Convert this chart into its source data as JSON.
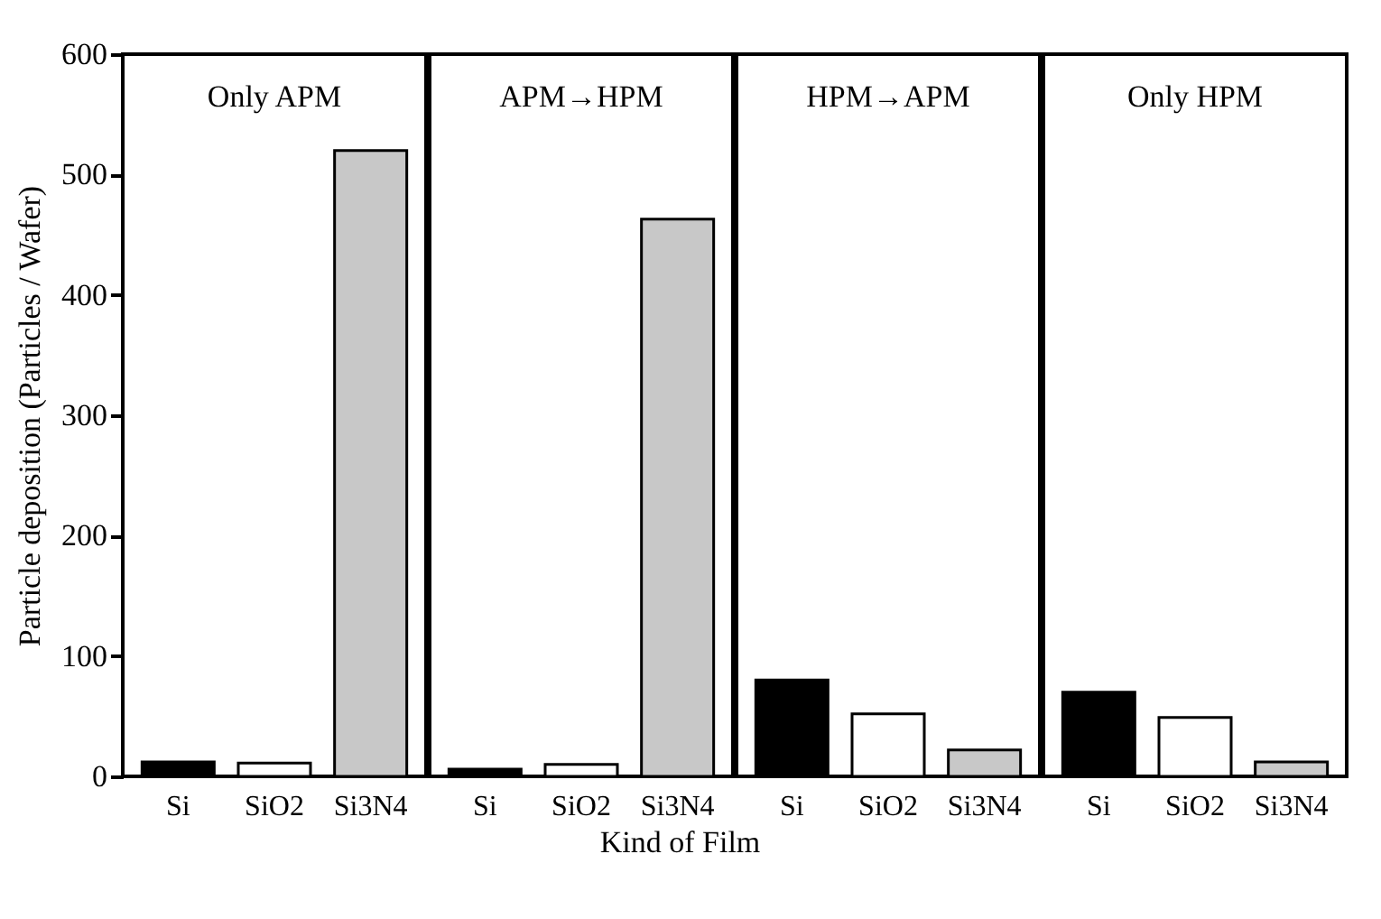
{
  "chart_data": [
    {
      "type": "bar",
      "title": "Only APM",
      "xlabel": "Kind of Film",
      "ylabel": "Particle deposition (Particles / Wafer)",
      "categories": [
        "Si",
        "SiO2",
        "Si3N4"
      ],
      "values": [
        12,
        11,
        520
      ],
      "colors": [
        "#000000",
        "#ffffff",
        "#c8c8c8"
      ],
      "ylim": [
        0,
        600
      ],
      "yticks": [
        0,
        100,
        200,
        300,
        400,
        500,
        600
      ]
    },
    {
      "type": "bar",
      "title": "APM→HPM",
      "categories": [
        "Si",
        "SiO2",
        "Si3N4"
      ],
      "values": [
        6,
        10,
        463
      ],
      "colors": [
        "#000000",
        "#ffffff",
        "#c8c8c8"
      ],
      "ylim": [
        0,
        600
      ],
      "yticks": [
        0,
        100,
        200,
        300,
        400,
        500,
        600
      ],
      "tick_labels": "x"
    },
    {
      "type": "bar",
      "title": "HPM→APM",
      "categories": [
        "Si",
        "SiO2",
        "Si3N4"
      ],
      "values": [
        80,
        52,
        22
      ],
      "colors": [
        "#000000",
        "#ffffff",
        "#c8c8c8"
      ],
      "ylim": [
        0,
        600
      ],
      "yticks": [
        0,
        100,
        200,
        300,
        400,
        500,
        600
      ],
      "tick_labels": "x"
    },
    {
      "type": "bar",
      "title": "Only HPM",
      "categories": [
        "Si",
        "SiO2",
        "Si3N4"
      ],
      "values": [
        70,
        49,
        12
      ],
      "colors": [
        "#000000",
        "#ffffff",
        "#c8c8c8"
      ],
      "ylim": [
        0,
        600
      ],
      "yticks": [
        0,
        100,
        200,
        300,
        400,
        500,
        600
      ],
      "tick_labels": "x"
    }
  ]
}
